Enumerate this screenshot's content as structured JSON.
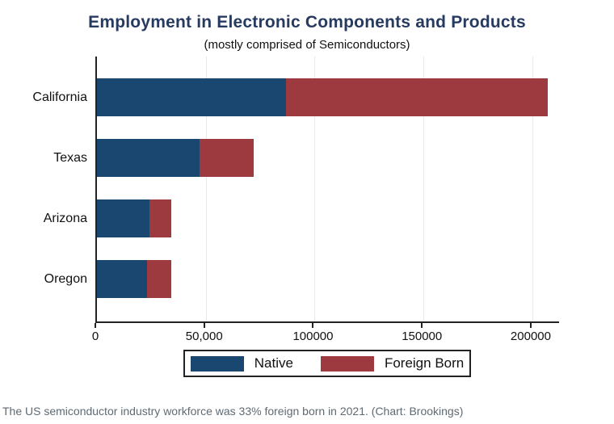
{
  "title": "Employment in Electronic Components and Products",
  "subtitle": "(mostly comprised of Semiconductors)",
  "caption": "The US semiconductor industry workforce was 33% foreign born in 2021. (Chart: Brookings)",
  "legend": {
    "items": [
      {
        "label": "Native",
        "color": "#1a476f"
      },
      {
        "label": "Foreign Born",
        "color": "#9c3a40"
      }
    ]
  },
  "chart_data": {
    "type": "bar",
    "orientation": "horizontal",
    "stacked": true,
    "title": "Employment in Electronic Components and Products",
    "subtitle": "(mostly comprised of Semiconductors)",
    "categories": [
      "California",
      "Texas",
      "Arizona",
      "Oregon"
    ],
    "series": [
      {
        "name": "Native",
        "color": "#1a476f",
        "values": [
          87000,
          47000,
          24000,
          23000
        ]
      },
      {
        "name": "Foreign Born",
        "color": "#9c3a40",
        "values": [
          120000,
          25000,
          10000,
          11000
        ]
      }
    ],
    "totals": [
      207000,
      72000,
      34000,
      34000
    ],
    "xlabel": "",
    "ylabel": "",
    "x_axis": {
      "ticks": [
        0,
        50000,
        100000,
        150000,
        200000
      ],
      "tick_labels": [
        "0",
        "50,000",
        "100000",
        "150000",
        "200000"
      ],
      "max": 213000
    },
    "grid": true,
    "legend_position": "bottom"
  },
  "colors": {
    "title": "#273a60",
    "axis": "#222222",
    "grid": "#e9e9e9",
    "caption": "#5f6a72",
    "background": "#ffffff"
  }
}
